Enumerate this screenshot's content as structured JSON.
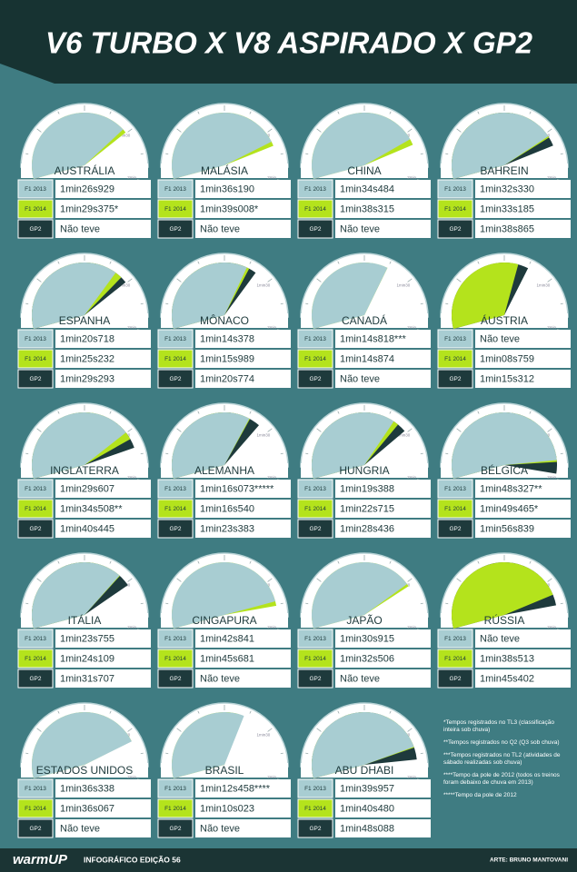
{
  "header": {
    "title": "V6 TURBO X V8 ASPIRADO X GP2"
  },
  "dial_labels": [
    "0s",
    "30s",
    "1min",
    "1min30",
    "2min"
  ],
  "categories": [
    "F1 2013",
    "F1 2014",
    "GP2"
  ],
  "circuits": [
    {
      "name": "AUSTRÁLIA",
      "times": [
        "1min26s929",
        "1min29s375*",
        "Não teve"
      ]
    },
    {
      "name": "MALÁSIA",
      "times": [
        "1min36s190",
        "1min39s008*",
        "Não teve"
      ]
    },
    {
      "name": "CHINA",
      "times": [
        "1min34s484",
        "1min38s315",
        "Não teve"
      ]
    },
    {
      "name": "BAHREIN",
      "times": [
        "1min32s330",
        "1min33s185",
        "1min38s865"
      ]
    },
    {
      "name": "ESPANHA",
      "times": [
        "1min20s718",
        "1min25s232",
        "1min29s293"
      ]
    },
    {
      "name": "MÔNACO",
      "times": [
        "1min14s378",
        "1min15s989",
        "1min20s774"
      ]
    },
    {
      "name": "CANADÁ",
      "times": [
        "1min14s818***",
        "1min14s874",
        "Não teve"
      ]
    },
    {
      "name": "ÁUSTRIA",
      "times": [
        "Não teve",
        "1min08s759",
        "1min15s312"
      ]
    },
    {
      "name": "INGLATERRA",
      "times": [
        "1min29s607",
        "1min34s508**",
        "1min40s445"
      ]
    },
    {
      "name": "ALEMANHA",
      "times": [
        "1min16s073*****",
        "1min16s540",
        "1min23s383"
      ]
    },
    {
      "name": "HUNGRIA",
      "times": [
        "1min19s388",
        "1min22s715",
        "1min28s436"
      ]
    },
    {
      "name": "BÉLGICA",
      "times": [
        "1min48s327**",
        "1min49s465*",
        "1min56s839"
      ]
    },
    {
      "name": "ITÁLIA",
      "times": [
        "1min23s755",
        "1min24s109",
        "1min31s707"
      ]
    },
    {
      "name": "CINGAPURA",
      "times": [
        "1min42s841",
        "1min45s681",
        "Não teve"
      ]
    },
    {
      "name": "JAPÃO",
      "times": [
        "1min30s915",
        "1min32s506",
        "Não teve"
      ]
    },
    {
      "name": "RÚSSIA",
      "times": [
        "Não teve",
        "1min38s513",
        "1min45s402"
      ]
    },
    {
      "name": "ESTADOS UNIDOS",
      "times": [
        "1min36s338",
        "1min36s067",
        "Não teve"
      ]
    },
    {
      "name": "BRASIL",
      "times": [
        "1min12s458****",
        "1min10s023",
        "Não teve"
      ]
    },
    {
      "name": "ABU DHABI",
      "times": [
        "1min39s957",
        "1min40s480",
        "1min48s088"
      ]
    }
  ],
  "notes": [
    "*Tempos registrados no TL3 (classificação inteira sob chuva)",
    "**Tempos registrados no Q2 (Q3 sob chuva)",
    "***Tempos registrados no TL2 (atividades de sábado realizadas sob chuva)",
    "****Tempo da pole de 2012 (todos os treinos foram debaixo de chuva em 2013)",
    "*****Tempo da pole de 2012"
  ],
  "footer": {
    "brand": "warmUP",
    "edition": "INFOGRÁFICO EDIÇÃO 56",
    "credit": "ARTE: BRUNO MANTOVANI"
  }
}
